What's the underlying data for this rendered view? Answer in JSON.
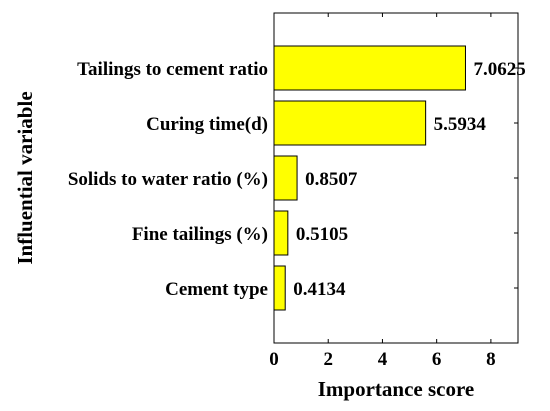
{
  "chart_data": {
    "type": "bar",
    "orientation": "horizontal",
    "xlabel": "Importance score",
    "ylabel": "Influential variable",
    "categories": [
      "Tailings to cement ratio",
      "Curing time(d)",
      "Solids to water ratio (%)",
      "Fine tailings (%)",
      "Cement type"
    ],
    "values": [
      7.0625,
      5.5934,
      0.8507,
      0.5105,
      0.4134
    ],
    "data_labels": [
      "7.0625",
      "5.5934",
      "0.8507",
      "0.5105",
      "0.4134"
    ],
    "xlim": [
      0,
      9
    ],
    "xticks": [
      0,
      2,
      4,
      6,
      8
    ],
    "grid": false,
    "bar_color": "#ffff00",
    "bar_edge_color": "#000000"
  }
}
